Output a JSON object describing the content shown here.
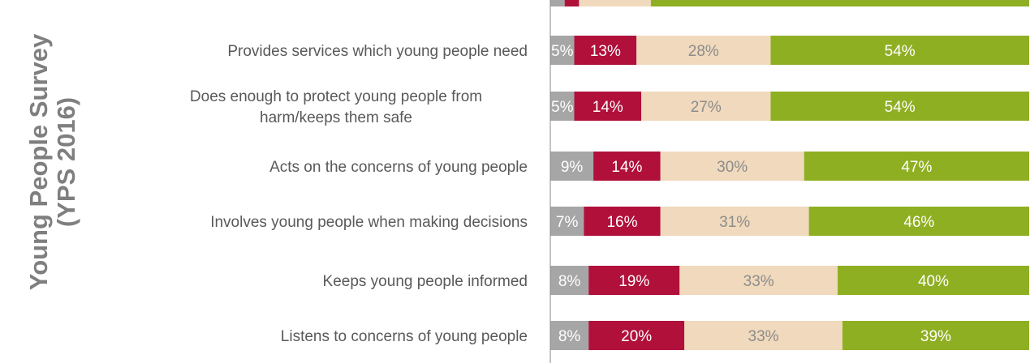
{
  "side_title": {
    "line1": "Young People Survey",
    "line2": "(YPS 2016)"
  },
  "colors": {
    "segments": [
      "#a6a6a6",
      "#b0103a",
      "#f0d9bc",
      "#8faf22"
    ],
    "segment_text": [
      "#ffffff",
      "#ffffff",
      "#8c8c8c",
      "#ffffff"
    ],
    "axis": "#888888"
  },
  "chart_data": {
    "type": "bar",
    "orientation": "horizontal",
    "stacked": true,
    "percent_stacked": true,
    "categories": [
      "Provides services which young people need",
      "Does enough to protect young people from harm/keeps them safe",
      "Acts on the concerns  of young people",
      "Involves young people when making decisions",
      "Keeps young people informed",
      "Listens to concerns of young people"
    ],
    "label_lines": [
      [
        "Provides services which young people need"
      ],
      [
        "Does enough to protect young people from",
        "harm/keeps them safe"
      ],
      [
        "Acts on the concerns  of young people"
      ],
      [
        "Involves young people when making decisions"
      ],
      [
        "Keeps young people informed"
      ],
      [
        "Listens to concerns of young people"
      ]
    ],
    "series": [
      {
        "values": [
          5,
          5,
          9,
          7,
          8,
          8
        ]
      },
      {
        "values": [
          13,
          14,
          14,
          16,
          19,
          20
        ]
      },
      {
        "values": [
          28,
          27,
          30,
          31,
          33,
          33
        ]
      },
      {
        "values": [
          54,
          54,
          47,
          46,
          40,
          39
        ]
      }
    ],
    "value_suffix": "%",
    "partial_top_row": {
      "values": [
        3,
        3,
        15,
        79
      ]
    }
  }
}
